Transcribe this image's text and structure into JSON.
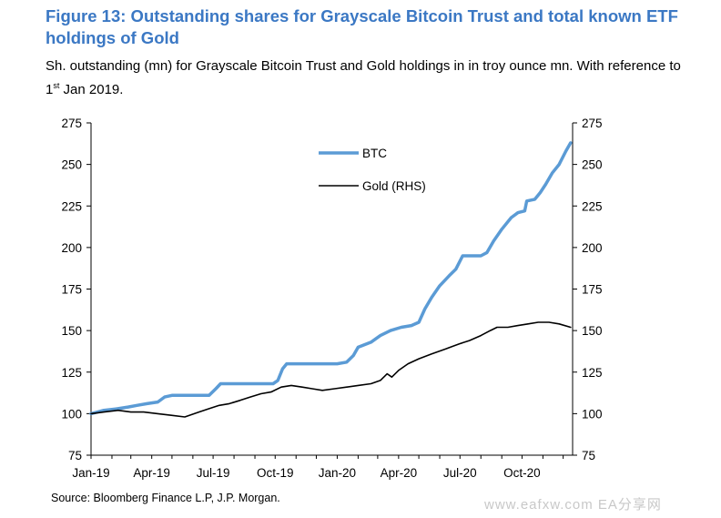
{
  "figure": {
    "title": "Figure 13: Outstanding shares for Grayscale Bitcoin Trust and total known ETF holdings of Gold",
    "subtitle_main": "Sh. outstanding (mn) for Grayscale Bitcoin Trust and Gold holdings in in troy ounce mn. With reference to 1",
    "subtitle_sup": "st",
    "subtitle_tail": " Jan 2019.",
    "source": "Source: Bloomberg Finance L.P, J.P. Morgan.",
    "watermark": "www.eafxw.com EA分享网"
  },
  "colors": {
    "title": "#3b78c4",
    "btc": "#5b9bd5",
    "gold": "#000000"
  },
  "chart_data": {
    "type": "line",
    "title": "",
    "xlabel": "",
    "ylabel": "",
    "x_tick_labels": [
      "Jan-19",
      "Apr-19",
      "Jul-19",
      "Oct-19",
      "Jan-20",
      "Apr-20",
      "Jul-20",
      "Oct-20"
    ],
    "y_ticks": [
      75,
      100,
      125,
      150,
      175,
      200,
      225,
      250,
      275
    ],
    "y2_ticks": [
      75,
      100,
      125,
      150,
      175,
      200,
      225,
      250,
      275
    ],
    "ylim": [
      75,
      275
    ],
    "y2lim": [
      75,
      275
    ],
    "xlim": [
      "2019-01-01",
      "2020-12-15"
    ],
    "grid": false,
    "legend_position": "top-center",
    "series": [
      {
        "name": "BTC",
        "axis": "left",
        "points": [
          [
            "2019-01-01",
            100
          ],
          [
            "2019-01-20",
            102
          ],
          [
            "2019-02-10",
            103
          ],
          [
            "2019-02-25",
            104
          ],
          [
            "2019-03-10",
            105
          ],
          [
            "2019-03-25",
            106
          ],
          [
            "2019-04-10",
            107
          ],
          [
            "2019-04-20",
            110
          ],
          [
            "2019-05-01",
            111
          ],
          [
            "2019-05-20",
            111
          ],
          [
            "2019-06-10",
            111
          ],
          [
            "2019-06-25",
            111
          ],
          [
            "2019-07-05",
            115
          ],
          [
            "2019-07-12",
            118
          ],
          [
            "2019-08-01",
            118
          ],
          [
            "2019-08-20",
            118
          ],
          [
            "2019-09-10",
            118
          ],
          [
            "2019-09-28",
            118
          ],
          [
            "2019-10-05",
            120
          ],
          [
            "2019-10-12",
            127
          ],
          [
            "2019-10-18",
            130
          ],
          [
            "2019-11-01",
            130
          ],
          [
            "2019-11-20",
            130
          ],
          [
            "2019-12-10",
            130
          ],
          [
            "2020-01-01",
            130
          ],
          [
            "2020-01-15",
            131
          ],
          [
            "2020-01-25",
            135
          ],
          [
            "2020-02-01",
            140
          ],
          [
            "2020-02-20",
            143
          ],
          [
            "2020-03-05",
            147
          ],
          [
            "2020-03-20",
            150
          ],
          [
            "2020-04-05",
            152
          ],
          [
            "2020-04-20",
            153
          ],
          [
            "2020-05-01",
            155
          ],
          [
            "2020-05-10",
            163
          ],
          [
            "2020-05-20",
            170
          ],
          [
            "2020-06-01",
            177
          ],
          [
            "2020-06-15",
            183
          ],
          [
            "2020-06-25",
            187
          ],
          [
            "2020-07-05",
            195
          ],
          [
            "2020-07-20",
            195
          ],
          [
            "2020-08-01",
            195
          ],
          [
            "2020-08-10",
            197
          ],
          [
            "2020-08-20",
            204
          ],
          [
            "2020-09-01",
            211
          ],
          [
            "2020-09-15",
            218
          ],
          [
            "2020-09-25",
            221
          ],
          [
            "2020-10-05",
            222
          ],
          [
            "2020-10-08",
            228
          ],
          [
            "2020-10-20",
            229
          ],
          [
            "2020-10-28",
            233
          ],
          [
            "2020-11-05",
            238
          ],
          [
            "2020-11-15",
            245
          ],
          [
            "2020-11-25",
            250
          ],
          [
            "2020-12-05",
            258
          ],
          [
            "2020-12-12",
            263
          ]
        ]
      },
      {
        "name": "Gold (RHS)",
        "axis": "right",
        "points": [
          [
            "2019-01-01",
            100
          ],
          [
            "2019-01-20",
            101
          ],
          [
            "2019-02-10",
            102
          ],
          [
            "2019-03-01",
            101
          ],
          [
            "2019-03-20",
            101
          ],
          [
            "2019-04-10",
            100
          ],
          [
            "2019-04-30",
            99
          ],
          [
            "2019-05-20",
            98
          ],
          [
            "2019-06-10",
            101
          ],
          [
            "2019-06-25",
            103
          ],
          [
            "2019-07-10",
            105
          ],
          [
            "2019-07-25",
            106
          ],
          [
            "2019-08-10",
            108
          ],
          [
            "2019-08-25",
            110
          ],
          [
            "2019-09-10",
            112
          ],
          [
            "2019-09-25",
            113
          ],
          [
            "2019-10-10",
            116
          ],
          [
            "2019-10-25",
            117
          ],
          [
            "2019-11-10",
            116
          ],
          [
            "2019-11-25",
            115
          ],
          [
            "2019-12-10",
            114
          ],
          [
            "2019-12-28",
            115
          ],
          [
            "2020-01-15",
            116
          ],
          [
            "2020-02-01",
            117
          ],
          [
            "2020-02-20",
            118
          ],
          [
            "2020-03-05",
            120
          ],
          [
            "2020-03-15",
            124
          ],
          [
            "2020-03-22",
            122
          ],
          [
            "2020-04-01",
            126
          ],
          [
            "2020-04-15",
            130
          ],
          [
            "2020-05-01",
            133
          ],
          [
            "2020-05-20",
            136
          ],
          [
            "2020-06-10",
            139
          ],
          [
            "2020-06-30",
            142
          ],
          [
            "2020-07-15",
            144
          ],
          [
            "2020-08-01",
            147
          ],
          [
            "2020-08-15",
            150
          ],
          [
            "2020-08-25",
            152
          ],
          [
            "2020-09-10",
            152
          ],
          [
            "2020-09-25",
            153
          ],
          [
            "2020-10-10",
            154
          ],
          [
            "2020-10-25",
            155
          ],
          [
            "2020-11-10",
            155
          ],
          [
            "2020-11-25",
            154
          ],
          [
            "2020-12-12",
            152
          ]
        ]
      }
    ]
  }
}
